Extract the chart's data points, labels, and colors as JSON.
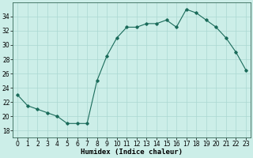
{
  "x": [
    0,
    1,
    2,
    3,
    4,
    5,
    6,
    7,
    8,
    9,
    10,
    11,
    12,
    13,
    14,
    15,
    16,
    17,
    18,
    19,
    20,
    21,
    22,
    23
  ],
  "y": [
    23,
    21.5,
    21,
    20.5,
    20,
    19,
    19,
    19,
    25,
    28.5,
    31,
    32.5,
    32.5,
    33,
    33,
    33.5,
    32.5,
    35,
    34.5,
    33.5,
    32.5,
    31,
    29,
    26.5
  ],
  "line_color": "#1a6b5a",
  "marker": "D",
  "marker_size": 1.8,
  "bg_color": "#cceee8",
  "grid_color": "#aad8d2",
  "xlabel": "Humidex (Indice chaleur)",
  "xlim": [
    -0.5,
    23.5
  ],
  "ylim": [
    17,
    36
  ],
  "yticks": [
    18,
    20,
    22,
    24,
    26,
    28,
    30,
    32,
    34
  ],
  "xticks": [
    0,
    1,
    2,
    3,
    4,
    5,
    6,
    7,
    8,
    9,
    10,
    11,
    12,
    13,
    14,
    15,
    16,
    17,
    18,
    19,
    20,
    21,
    22,
    23
  ],
  "line_width": 0.8,
  "xlabel_fontsize": 6.5,
  "tick_fontsize": 5.5
}
